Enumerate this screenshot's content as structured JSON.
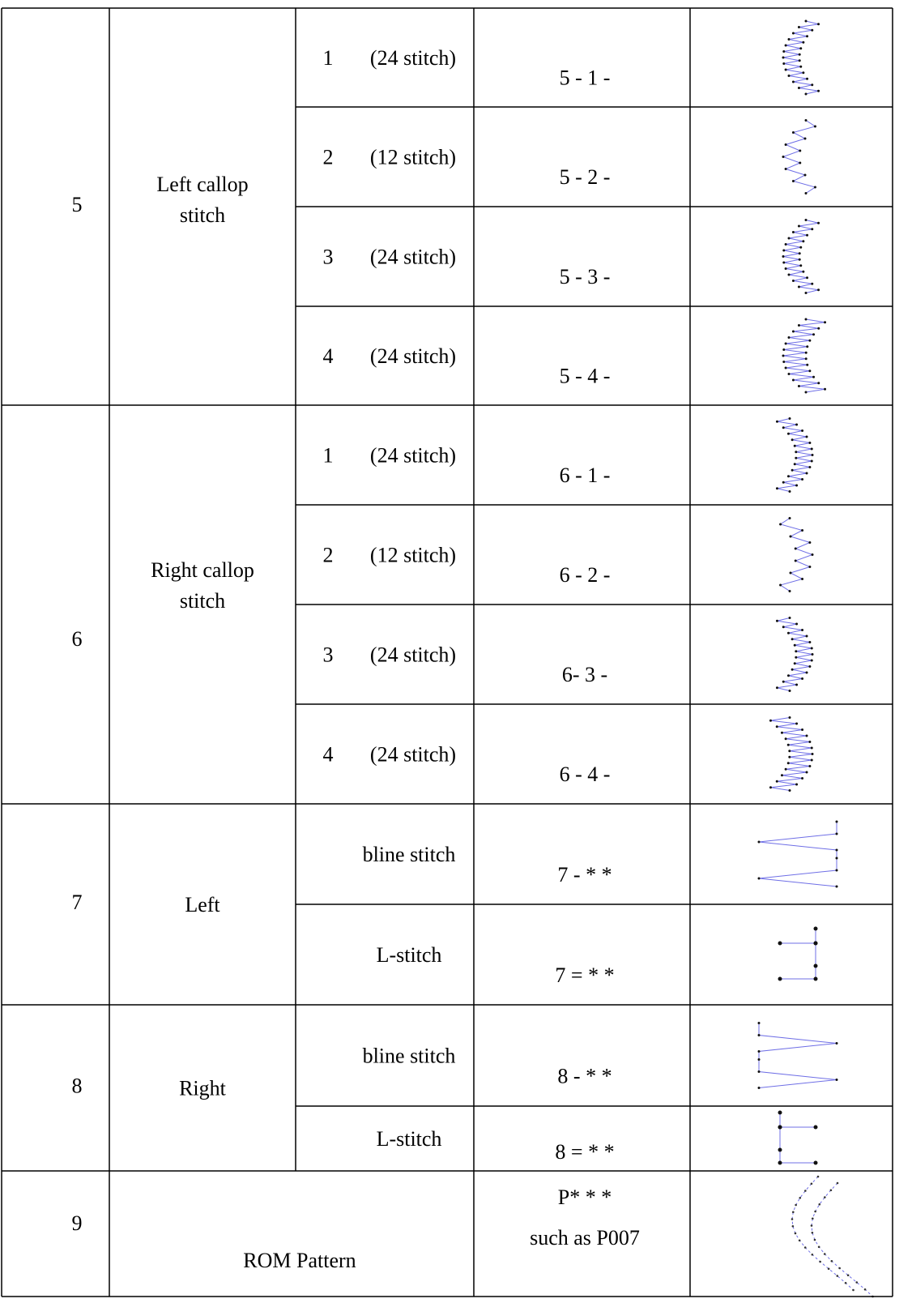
{
  "table": {
    "groups": [
      {
        "number": "5",
        "name": "Left callop stitch",
        "rows": [
          {
            "index": "1",
            "stitch": "(24 stitch)",
            "code": "5 - 1 -"
          },
          {
            "index": "2",
            "stitch": "(12 stitch)",
            "code": "5 - 2 -"
          },
          {
            "index": "3",
            "stitch": "(24 stitch)",
            "code": "5 - 3 -"
          },
          {
            "index": "4",
            "stitch": "(24 stitch)",
            "code": "5 - 4 -"
          }
        ]
      },
      {
        "number": "6",
        "name": "Right callop stitch",
        "rows": [
          {
            "index": "1",
            "stitch": "(24 stitch)",
            "code": "6 - 1 -"
          },
          {
            "index": "2",
            "stitch": "(12 stitch)",
            "code": "6 - 2 -"
          },
          {
            "index": "3",
            "stitch": "(24 stitch)",
            "code": "6- 3 -"
          },
          {
            "index": "4",
            "stitch": "(24 stitch)",
            "code": "6 - 4 -"
          }
        ]
      },
      {
        "number": "7",
        "name": "Left",
        "rows": [
          {
            "stitch": "bline stitch",
            "code": "7 - * *"
          },
          {
            "stitch": "L-stitch",
            "code": "7 = * *"
          }
        ]
      },
      {
        "number": "8",
        "name": "Right",
        "rows": [
          {
            "stitch": "bline stitch",
            "code": "8 - * *"
          },
          {
            "stitch": "L-stitch",
            "code": "8 = * *"
          }
        ]
      }
    ],
    "rom": {
      "number": "9",
      "name": "ROM Pattern",
      "code": [
        "P* * *",
        "such as P007"
      ]
    }
  }
}
